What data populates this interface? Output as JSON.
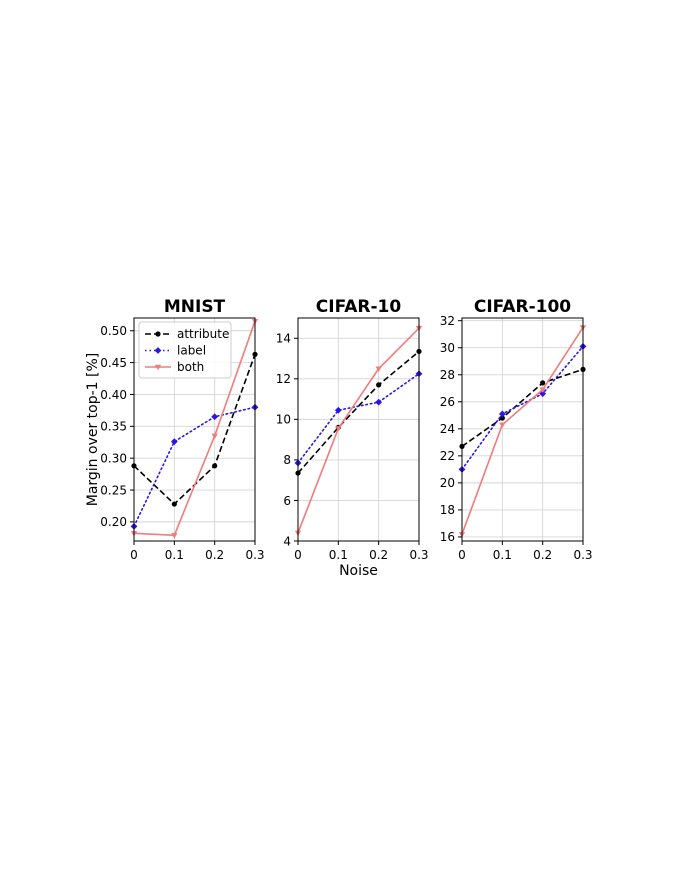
{
  "chart_data": [
    {
      "type": "line",
      "title": "MNIST",
      "xlabel": "",
      "ylabel": "Margin over top-1 [%]",
      "x": [
        0,
        0.1,
        0.2,
        0.3
      ],
      "xlim": [
        0,
        0.3
      ],
      "ylim": [
        0.17,
        0.52
      ],
      "xticks": [
        "0",
        "0.1",
        "0.2",
        "0.3"
      ],
      "yticks": [
        0.2,
        0.25,
        0.3,
        0.35,
        0.4,
        0.45,
        0.5
      ],
      "ytick_labels": [
        "0.20",
        "0.25",
        "0.30",
        "0.35",
        "0.40",
        "0.45",
        "0.50"
      ],
      "grid": true,
      "legend": "top-left",
      "series": [
        {
          "name": "attribute",
          "values": [
            0.288,
            0.228,
            0.288,
            0.463
          ]
        },
        {
          "name": "label",
          "values": [
            0.193,
            0.326,
            0.365,
            0.38
          ]
        },
        {
          "name": "both",
          "values": [
            0.182,
            0.179,
            0.335,
            0.515
          ]
        }
      ]
    },
    {
      "type": "line",
      "title": "CIFAR-10",
      "xlabel": "Noise",
      "ylabel": "",
      "x": [
        0,
        0.1,
        0.2,
        0.3
      ],
      "xlim": [
        0,
        0.3
      ],
      "ylim": [
        4,
        15
      ],
      "xticks": [
        "0",
        "0.1",
        "0.2",
        "0.3"
      ],
      "yticks": [
        4,
        6,
        8,
        10,
        12,
        14
      ],
      "ytick_labels": [
        "4",
        "6",
        "8",
        "10",
        "12",
        "14"
      ],
      "grid": true,
      "series": [
        {
          "name": "attribute",
          "values": [
            7.35,
            9.6,
            11.7,
            13.35
          ]
        },
        {
          "name": "label",
          "values": [
            7.85,
            10.45,
            10.85,
            12.25
          ]
        },
        {
          "name": "both",
          "values": [
            4.4,
            9.55,
            12.5,
            14.5
          ]
        }
      ]
    },
    {
      "type": "line",
      "title": "CIFAR-100",
      "xlabel": "",
      "ylabel": "",
      "x": [
        0,
        0.1,
        0.2,
        0.3
      ],
      "xlim": [
        0,
        0.3
      ],
      "ylim": [
        15.7,
        32.2
      ],
      "xticks": [
        "0",
        "0.1",
        "0.2",
        "0.3"
      ],
      "yticks": [
        16,
        18,
        20,
        22,
        24,
        26,
        28,
        30,
        32
      ],
      "ytick_labels": [
        "16",
        "18",
        "20",
        "22",
        "24",
        "26",
        "28",
        "30",
        "32"
      ],
      "grid": true,
      "series": [
        {
          "name": "attribute",
          "values": [
            22.7,
            24.8,
            27.4,
            28.4
          ]
        },
        {
          "name": "label",
          "values": [
            21.0,
            25.1,
            26.6,
            30.1
          ]
        },
        {
          "name": "both",
          "values": [
            16.2,
            24.3,
            26.9,
            31.5
          ]
        }
      ]
    }
  ],
  "styles": {
    "attribute": {
      "color": "#000000",
      "dash": "6,3",
      "marker": "circle"
    },
    "label": {
      "color": "#2b16e8",
      "dash": "1.5,3",
      "marker": "diamond"
    },
    "both": {
      "color": "#f27b7b",
      "dash": "",
      "marker": "triangle-down"
    }
  }
}
